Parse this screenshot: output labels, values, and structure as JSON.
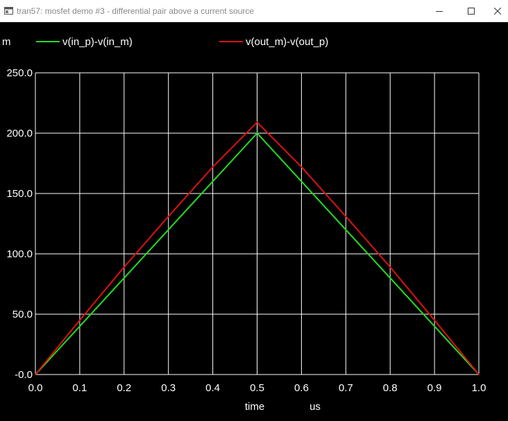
{
  "window": {
    "title": "tran57: mosfet demo #3 - differential pair above a current source",
    "controls": [
      "minimize",
      "maximize",
      "close"
    ]
  },
  "colors": {
    "background": "#000000",
    "grid": "#ffffff",
    "text": "#ffffff",
    "series1": "#22dd22",
    "series2": "#dd1111"
  },
  "chart_data": {
    "type": "line",
    "y_unit_prefix": "m",
    "xlabel": "time",
    "x_unit": "us",
    "xlim": [
      0,
      1.0
    ],
    "ylim": [
      0,
      250
    ],
    "grid": true,
    "legend_position": "top",
    "x_ticks": [
      "0.0",
      "0.1",
      "0.2",
      "0.3",
      "0.4",
      "0.5",
      "0.6",
      "0.7",
      "0.8",
      "0.9",
      "1.0"
    ],
    "y_ticks": [
      "-0.0",
      "50.0",
      "100.0",
      "150.0",
      "200.0",
      "250.0"
    ],
    "y_tick_values": [
      0,
      50,
      100,
      150,
      200,
      250
    ],
    "x_tick_values": [
      0,
      0.1,
      0.2,
      0.3,
      0.4,
      0.5,
      0.6,
      0.7,
      0.8,
      0.9,
      1.0
    ],
    "series": [
      {
        "name": "v(in_p)-v(in_m)",
        "color": "#22dd22",
        "x": [
          0,
          0.1,
          0.2,
          0.3,
          0.4,
          0.5,
          0.6,
          0.7,
          0.8,
          0.9,
          1.0
        ],
        "y": [
          0,
          40,
          80,
          120,
          160,
          200,
          160,
          120,
          80,
          40,
          0
        ]
      },
      {
        "name": "v(out_m)-v(out_p)",
        "color": "#dd1111",
        "x": [
          0,
          0.1,
          0.2,
          0.3,
          0.4,
          0.5,
          0.6,
          0.7,
          0.8,
          0.9,
          1.0
        ],
        "y": [
          0,
          45,
          89,
          131,
          172,
          209,
          172,
          131,
          89,
          45,
          0
        ]
      }
    ]
  }
}
